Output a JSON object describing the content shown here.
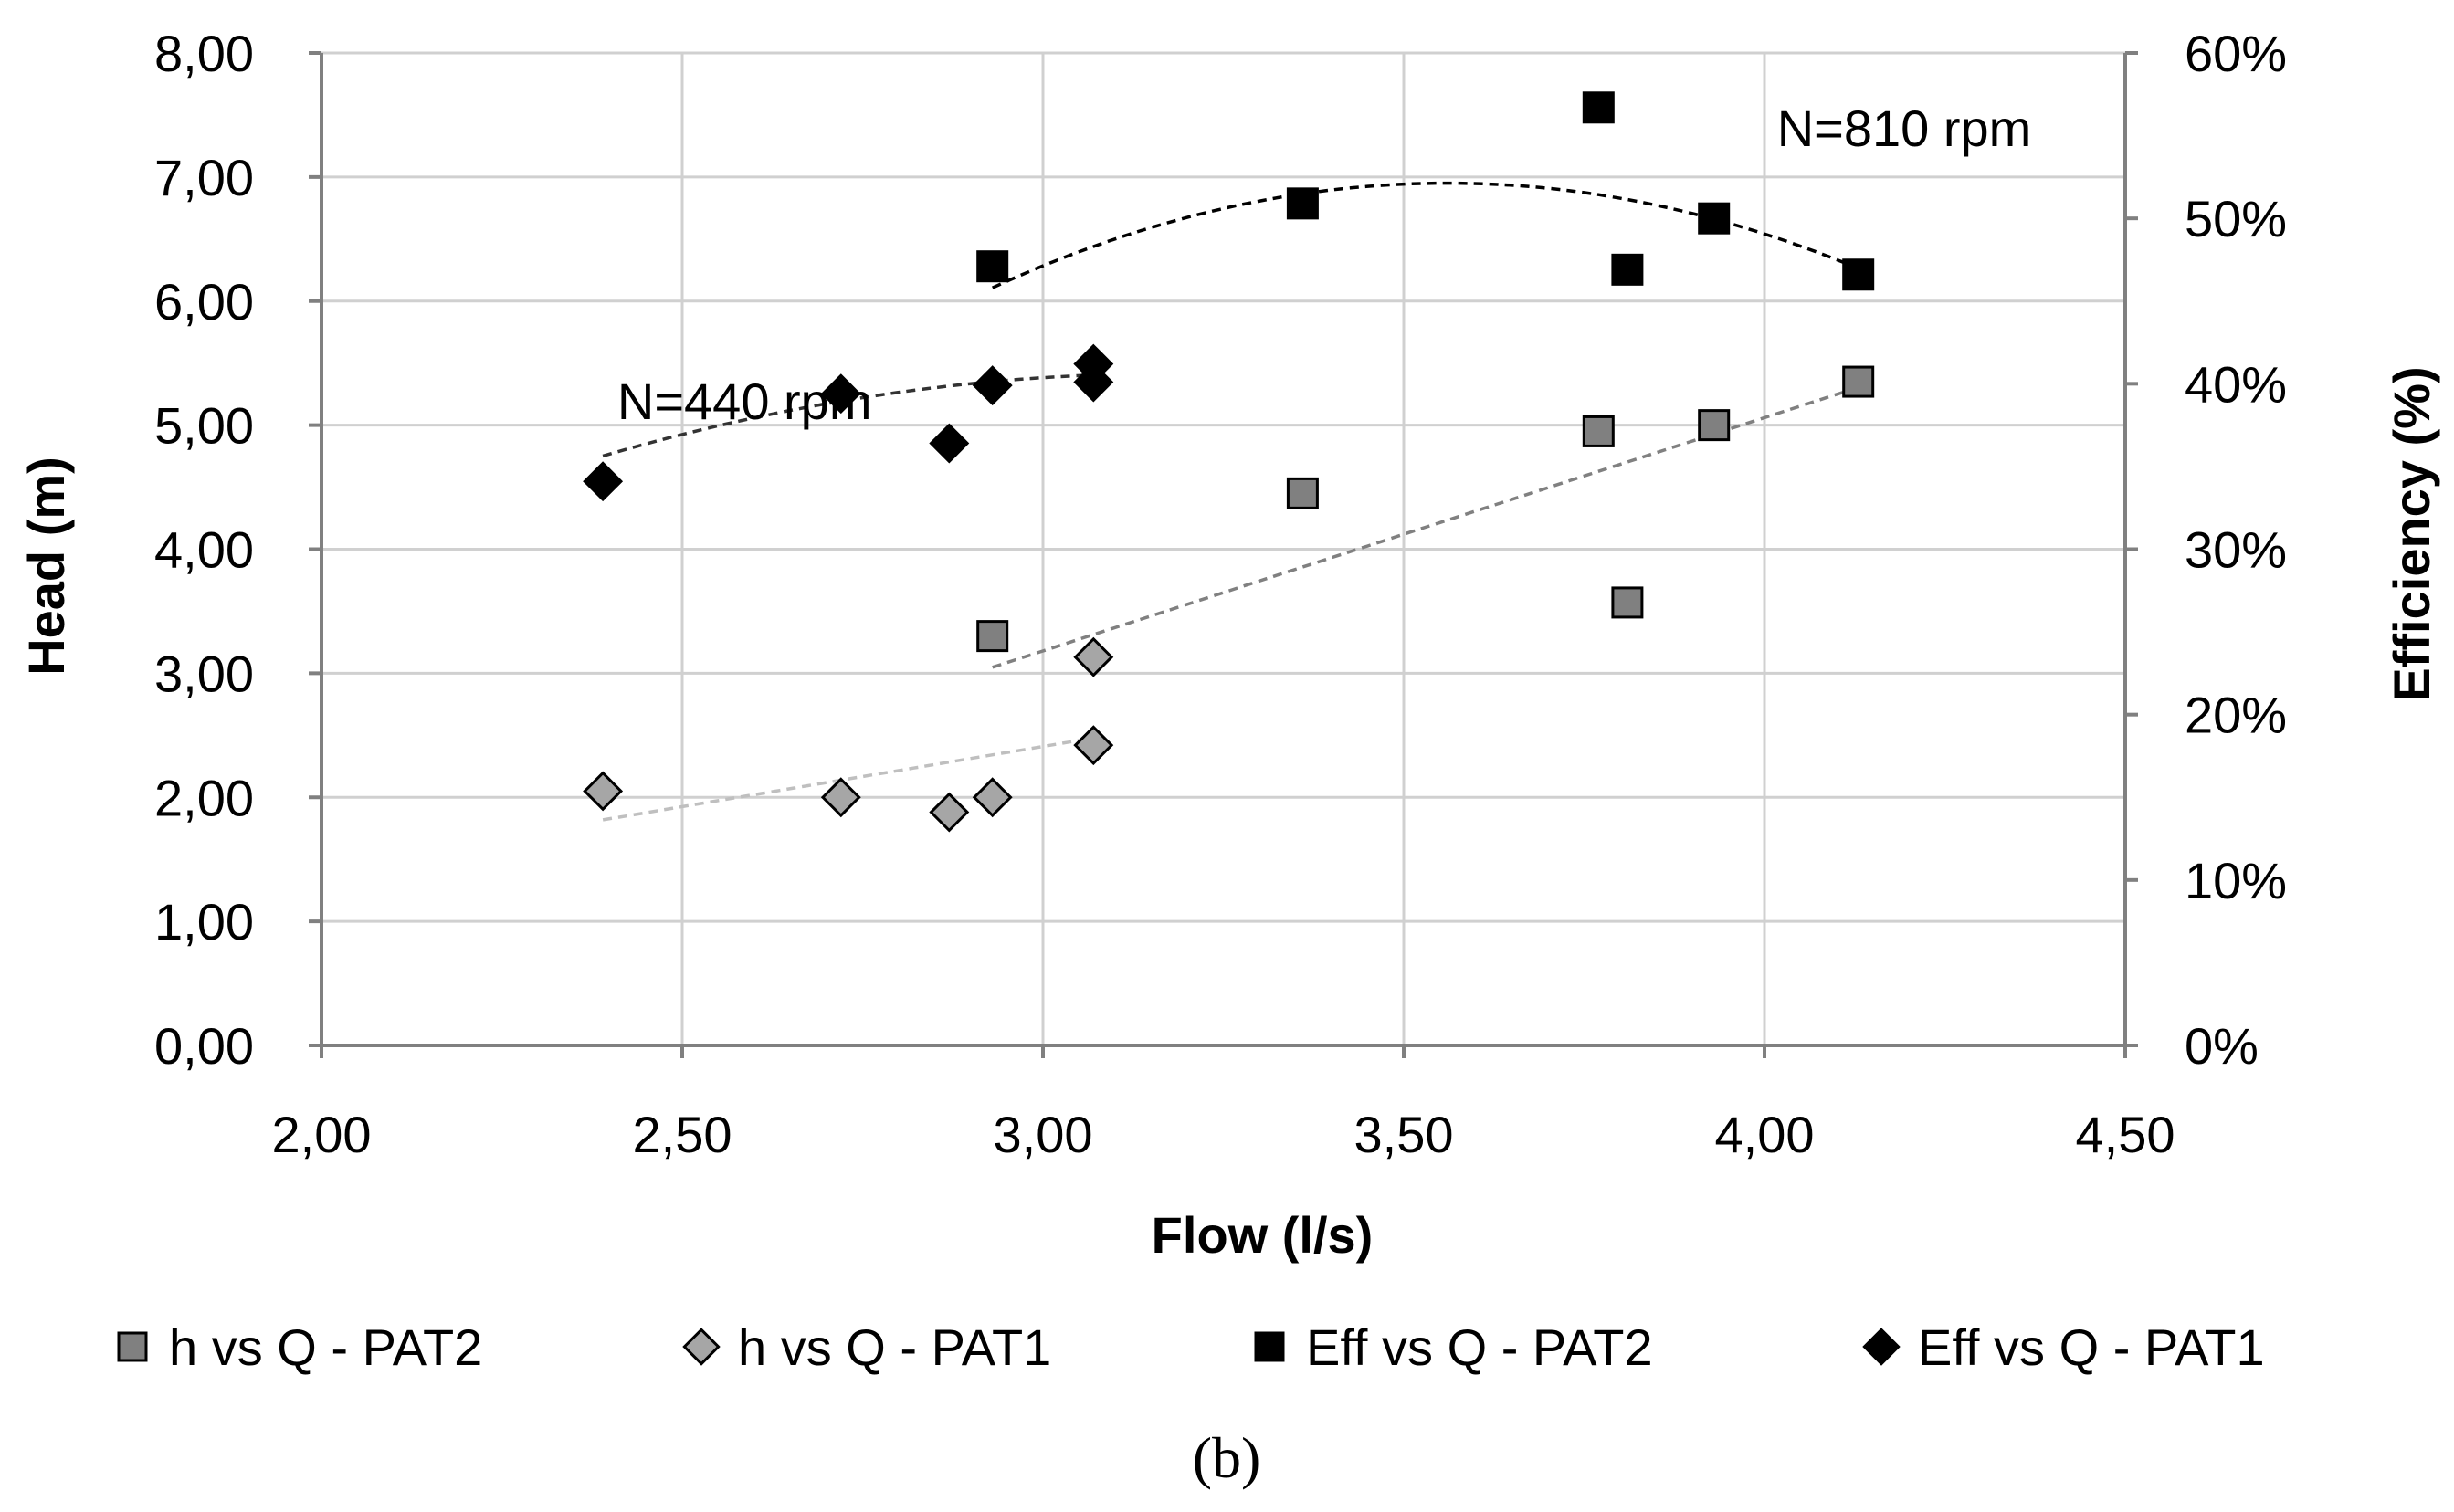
{
  "chart_data": {
    "type": "scatter",
    "xlabel": "Flow (l/s)",
    "ylabel": "Head (m)",
    "y2label": "Efficiency (%)",
    "xlim": [
      2.0,
      4.5
    ],
    "ylim": [
      0.0,
      8.0
    ],
    "y2lim": [
      0,
      60
    ],
    "x_ticks": [
      "2,00",
      "2,50",
      "3,00",
      "3,50",
      "4,00",
      "4,50"
    ],
    "x_tick_values": [
      2.0,
      2.5,
      3.0,
      3.5,
      4.0,
      4.5
    ],
    "y_ticks": [
      "0,00",
      "1,00",
      "2,00",
      "3,00",
      "4,00",
      "5,00",
      "6,00",
      "7,00",
      "8,00"
    ],
    "y_tick_values": [
      0,
      1,
      2,
      3,
      4,
      5,
      6,
      7,
      8
    ],
    "y2_ticks": [
      "0%",
      "10%",
      "20%",
      "30%",
      "40%",
      "50%",
      "60%"
    ],
    "y2_tick_values": [
      0,
      10,
      20,
      30,
      40,
      50,
      60
    ],
    "grid": true,
    "legend_position": "bottom",
    "annotations": [
      {
        "id": "n810",
        "text": "N=810 rpm",
        "x": 4.37,
        "y": 7.25
      },
      {
        "id": "n440",
        "text": "N=440 rpm",
        "x": 2.41,
        "y": 5.05
      }
    ],
    "caption": "(b)",
    "series": [
      {
        "id": "h-pat2",
        "name": "h vs Q - PAT2",
        "axis": "left",
        "marker": "square",
        "color": "#808080",
        "points": [
          [
            2.93,
            3.3
          ],
          [
            3.36,
            4.45
          ],
          [
            3.77,
            4.95
          ],
          [
            3.81,
            3.57
          ],
          [
            3.93,
            5.0
          ],
          [
            4.13,
            5.35
          ]
        ],
        "trend": {
          "kind": "poly2",
          "coef": [
            0.0,
            1.88,
            -2.46
          ],
          "range": [
            2.93,
            4.13
          ],
          "color": "#808080"
        }
      },
      {
        "id": "h-pat1",
        "name": "h vs Q - PAT1",
        "axis": "left",
        "marker": "diamond",
        "color": "#a6a6a6",
        "points": [
          [
            2.39,
            2.05
          ],
          [
            2.72,
            2.0
          ],
          [
            2.87,
            1.88
          ],
          [
            2.93,
            2.0
          ],
          [
            3.07,
            3.13
          ],
          [
            3.07,
            2.42
          ]
        ],
        "trend": {
          "kind": "poly2",
          "coef": [
            0.0,
            0.97,
            -0.5
          ],
          "range": [
            2.39,
            3.07
          ],
          "color": "#bfbfbf"
        }
      },
      {
        "id": "eff-pat2",
        "name": "Eff vs Q - PAT2",
        "axis": "right",
        "marker": "square",
        "color": "#000000",
        "points": [
          [
            2.93,
            47.1
          ],
          [
            3.36,
            50.9
          ],
          [
            3.77,
            56.7
          ],
          [
            3.81,
            46.9
          ],
          [
            3.93,
            50.0
          ],
          [
            4.13,
            46.6
          ]
        ],
        "trend": {
          "kind": "poly2",
          "coef": [
            -15.9,
            113.23,
            -149.46
          ],
          "range": [
            2.93,
            4.13
          ],
          "color": "#000000"
        }
      },
      {
        "id": "eff-pat1",
        "name": "Eff vs Q - PAT1",
        "axis": "right",
        "marker": "diamond",
        "color": "#000000",
        "points": [
          [
            2.39,
            34.1
          ],
          [
            2.72,
            39.4
          ],
          [
            2.87,
            36.4
          ],
          [
            2.93,
            39.9
          ],
          [
            3.07,
            41.2
          ],
          [
            3.07,
            40.1
          ]
        ],
        "trend": {
          "kind": "poly2",
          "coef": [
            -8.1,
            51.42,
            -40.99
          ],
          "range": [
            2.39,
            3.07
          ],
          "color": "#333333"
        }
      }
    ]
  }
}
